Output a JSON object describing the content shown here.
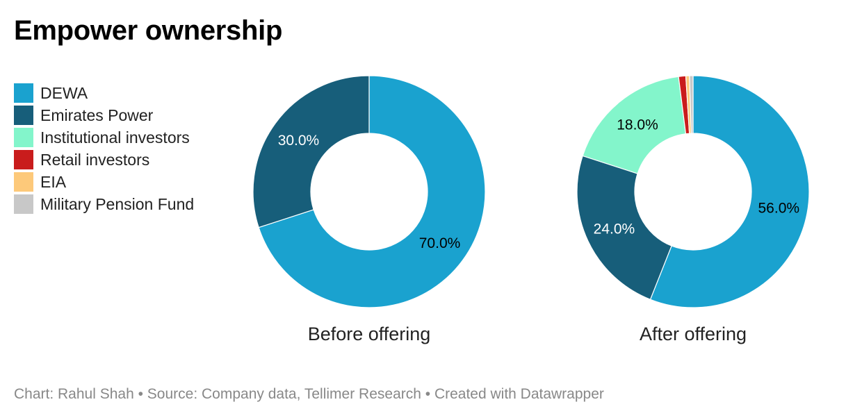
{
  "title": "Empower ownership",
  "source": "Chart: Rahul Shah • Source: Company data, Tellimer Research • Created with Datawrapper",
  "legend": [
    {
      "label": "DEWA",
      "color": "#1aa2cf"
    },
    {
      "label": "Emirates Power",
      "color": "#175e7a"
    },
    {
      "label": "Institutional investors",
      "color": "#83f5cb"
    },
    {
      "label": "Retail investors",
      "color": "#c91c1c"
    },
    {
      "label": "EIA",
      "color": "#fdc97a"
    },
    {
      "label": "Military Pension Fund",
      "color": "#c8c8c8"
    }
  ],
  "chart_data": [
    {
      "type": "pie",
      "title": "Before offering",
      "categories": [
        "DEWA",
        "Emirates Power"
      ],
      "values": [
        70.0,
        30.0
      ],
      "labels": [
        "70.0%",
        "30.0%"
      ]
    },
    {
      "type": "pie",
      "title": "After offering",
      "categories": [
        "DEWA",
        "Emirates Power",
        "Institutional investors",
        "Retail investors",
        "EIA",
        "Military Pension Fund"
      ],
      "values": [
        56.0,
        24.0,
        18.0,
        1.0,
        0.5,
        0.5
      ],
      "labels": [
        "56.0%",
        "24.0%",
        "18.0%",
        "",
        "",
        ""
      ]
    }
  ]
}
